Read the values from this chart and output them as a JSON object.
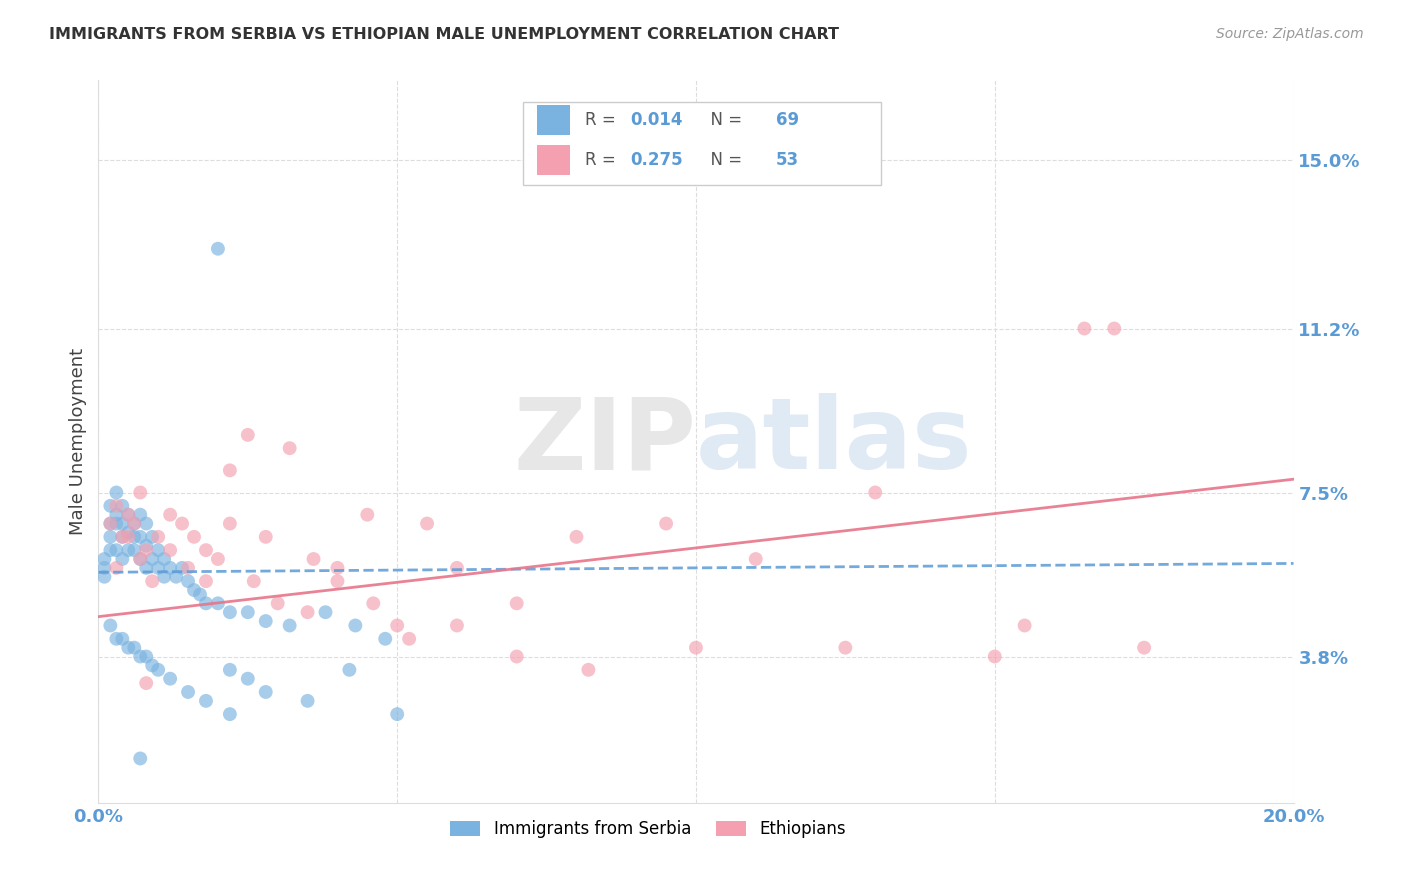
{
  "title": "IMMIGRANTS FROM SERBIA VS ETHIOPIAN MALE UNEMPLOYMENT CORRELATION CHART",
  "source": "Source: ZipAtlas.com",
  "ylabel": "Male Unemployment",
  "yticks": [
    0.038,
    0.075,
    0.112,
    0.15
  ],
  "ytick_labels": [
    "3.8%",
    "7.5%",
    "11.2%",
    "15.0%"
  ],
  "xlim": [
    0.0,
    0.2
  ],
  "ylim": [
    0.005,
    0.168
  ],
  "legend_label1": "Immigrants from Serbia",
  "legend_label2": "Ethiopians",
  "color_blue": "#7ab3e0",
  "color_pink": "#f4a0b0",
  "color_blue_line": "#5b9bd5",
  "color_pink_line": "#e8758a",
  "color_tick_blue": "#5b9bd5",
  "watermark_color_zip": "#c0c0c0",
  "watermark_color_atlas": "#a8c4e0",
  "serbia_line_x": [
    0.0,
    0.2
  ],
  "serbia_line_y": [
    0.057,
    0.059
  ],
  "ethiopia_line_x": [
    0.0,
    0.2
  ],
  "ethiopia_line_y": [
    0.047,
    0.078
  ],
  "serbia_x": [
    0.001,
    0.001,
    0.001,
    0.002,
    0.002,
    0.002,
    0.002,
    0.003,
    0.003,
    0.003,
    0.003,
    0.004,
    0.004,
    0.004,
    0.004,
    0.005,
    0.005,
    0.005,
    0.006,
    0.006,
    0.006,
    0.007,
    0.007,
    0.007,
    0.008,
    0.008,
    0.008,
    0.009,
    0.009,
    0.01,
    0.01,
    0.011,
    0.011,
    0.012,
    0.013,
    0.014,
    0.015,
    0.016,
    0.017,
    0.018,
    0.02,
    0.022,
    0.025,
    0.028,
    0.032,
    0.038,
    0.043,
    0.048,
    0.022,
    0.025,
    0.003,
    0.005,
    0.007,
    0.009,
    0.002,
    0.004,
    0.006,
    0.008,
    0.01,
    0.012,
    0.015,
    0.018,
    0.022,
    0.028,
    0.035,
    0.042,
    0.05,
    0.02,
    0.007
  ],
  "serbia_y": [
    0.06,
    0.058,
    0.056,
    0.072,
    0.068,
    0.065,
    0.062,
    0.075,
    0.07,
    0.068,
    0.062,
    0.072,
    0.068,
    0.065,
    0.06,
    0.07,
    0.066,
    0.062,
    0.068,
    0.065,
    0.062,
    0.07,
    0.065,
    0.06,
    0.068,
    0.063,
    0.058,
    0.065,
    0.06,
    0.062,
    0.058,
    0.06,
    0.056,
    0.058,
    0.056,
    0.058,
    0.055,
    0.053,
    0.052,
    0.05,
    0.05,
    0.048,
    0.048,
    0.046,
    0.045,
    0.048,
    0.045,
    0.042,
    0.035,
    0.033,
    0.042,
    0.04,
    0.038,
    0.036,
    0.045,
    0.042,
    0.04,
    0.038,
    0.035,
    0.033,
    0.03,
    0.028,
    0.025,
    0.03,
    0.028,
    0.035,
    0.025,
    0.13,
    0.015
  ],
  "ethiopia_x": [
    0.002,
    0.003,
    0.004,
    0.005,
    0.006,
    0.007,
    0.008,
    0.01,
    0.012,
    0.014,
    0.016,
    0.018,
    0.02,
    0.022,
    0.025,
    0.028,
    0.032,
    0.036,
    0.04,
    0.045,
    0.05,
    0.055,
    0.06,
    0.07,
    0.08,
    0.095,
    0.11,
    0.13,
    0.155,
    0.175,
    0.003,
    0.005,
    0.007,
    0.009,
    0.012,
    0.015,
    0.018,
    0.022,
    0.026,
    0.03,
    0.035,
    0.04,
    0.046,
    0.052,
    0.06,
    0.07,
    0.082,
    0.1,
    0.125,
    0.15,
    0.165,
    0.17,
    0.008
  ],
  "ethiopia_y": [
    0.068,
    0.072,
    0.065,
    0.07,
    0.068,
    0.075,
    0.062,
    0.065,
    0.07,
    0.068,
    0.065,
    0.062,
    0.06,
    0.08,
    0.088,
    0.065,
    0.085,
    0.06,
    0.055,
    0.07,
    0.045,
    0.068,
    0.058,
    0.05,
    0.065,
    0.068,
    0.06,
    0.075,
    0.045,
    0.04,
    0.058,
    0.065,
    0.06,
    0.055,
    0.062,
    0.058,
    0.055,
    0.068,
    0.055,
    0.05,
    0.048,
    0.058,
    0.05,
    0.042,
    0.045,
    0.038,
    0.035,
    0.04,
    0.04,
    0.038,
    0.112,
    0.112,
    0.032
  ]
}
